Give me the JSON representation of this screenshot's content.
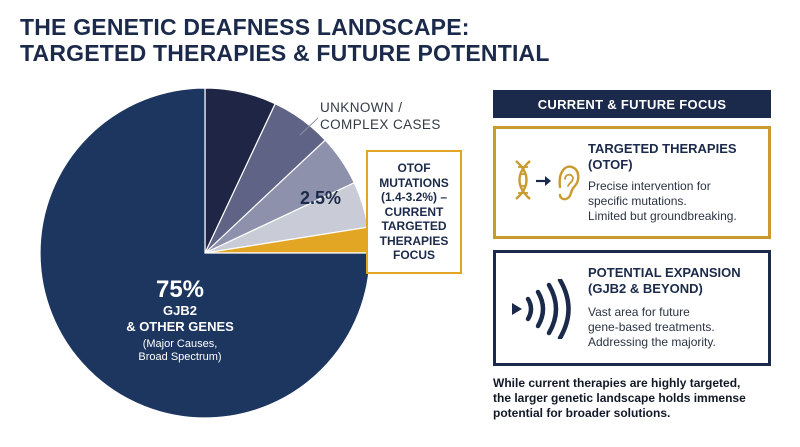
{
  "title": {
    "line1": "THE GENETIC DEAFNESS LANDSCAPE:",
    "line2": "TARGETED THERAPIES & FUTURE POTENTIAL"
  },
  "chart_data": {
    "type": "pie",
    "slices": [
      {
        "label": "GJB2 & OTHER GENES",
        "value": 75,
        "color": "#1c3660"
      },
      {
        "label": "OTOF MUTATIONS (1.4-3.2%)",
        "value": 2.5,
        "color": "#e3a624"
      },
      {
        "label": "UNKNOWN / COMPLEX CASES",
        "value": 4.5,
        "color": "#c9ccd6"
      },
      {
        "label": "UNKNOWN / COMPLEX CASES",
        "value": 5,
        "color": "#8d91ab"
      },
      {
        "label": "UNKNOWN / COMPLEX CASES",
        "value": 6,
        "color": "#5f6385"
      },
      {
        "label": "",
        "value": 7,
        "color": "#1e2545"
      }
    ],
    "labels": {
      "big_pct": "75%",
      "big_name1": "GJB2",
      "big_name2": "& OTHER GENES",
      "big_sub1": "(Major Causes,",
      "big_sub2": "Broad Spectrum)",
      "small_pct": "2.5%",
      "unknown1": "UNKNOWN /",
      "unknown2": "COMPLEX CASES",
      "callout": [
        "OTOF",
        "MUTATIONS",
        "(1.4-3.2%) –",
        "CURRENT",
        "TARGETED",
        "THERAPIES",
        "FOCUS"
      ]
    }
  },
  "focus": {
    "header": "CURRENT & FUTURE FOCUS",
    "cards": [
      {
        "title1": "TARGETED THERAPIES",
        "title2": "(OTOF)",
        "body": [
          "Precise intervention for",
          "specific mutations.",
          "Limited but groundbreaking."
        ],
        "icon": "dna-to-ear-icon",
        "accent": "#c99a2e"
      },
      {
        "title1": "POTENTIAL EXPANSION",
        "title2": "(GJB2 & BEYOND)",
        "body": [
          "Vast area for future",
          "gene-based treatments.",
          "Addressing the majority."
        ],
        "icon": "sound-waves-icon",
        "accent": "#1b2a4a"
      }
    ]
  },
  "footer": [
    "While current therapies are highly targeted,",
    "the larger genetic landscape holds immense",
    "potential for broader solutions."
  ]
}
